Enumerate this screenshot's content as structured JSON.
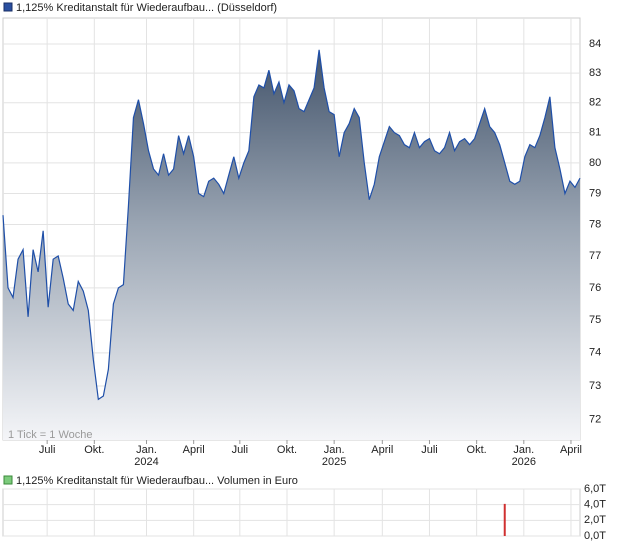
{
  "chart_data": [
    {
      "type": "area",
      "title": "1,125% Kreditanstalt für Wiederaufbau... (Düsseldorf)",
      "color": "#1f4fa8",
      "log_scale": true,
      "grid": true,
      "annotation": "1 Tick = 1 Woche",
      "values": [
        78.3,
        76.0,
        75.7,
        76.9,
        77.2,
        75.1,
        77.2,
        76.5,
        77.8,
        75.4,
        76.9,
        77.0,
        76.3,
        75.5,
        75.3,
        76.2,
        75.9,
        75.3,
        73.8,
        72.6,
        72.7,
        73.5,
        75.5,
        76.0,
        76.1,
        78.6,
        81.5,
        82.1,
        81.3,
        80.4,
        79.8,
        79.6,
        80.3,
        79.6,
        79.8,
        80.9,
        80.3,
        80.9,
        80.2,
        79.0,
        78.9,
        79.4,
        79.5,
        79.3,
        79.0,
        79.6,
        80.2,
        79.5,
        80.0,
        80.4,
        82.2,
        82.6,
        82.5,
        83.1,
        82.3,
        82.7,
        82.0,
        82.6,
        82.4,
        81.8,
        81.7,
        82.1,
        82.5,
        83.8,
        82.5,
        81.7,
        81.6,
        80.2,
        81.0,
        81.3,
        81.8,
        81.5,
        80.0,
        78.8,
        79.3,
        80.2,
        80.7,
        81.2,
        81.0,
        80.9,
        80.6,
        80.5,
        81.0,
        80.5,
        80.7,
        80.8,
        80.4,
        80.3,
        80.5,
        81.0,
        80.4,
        80.7,
        80.8,
        80.6,
        80.8,
        81.3,
        81.8,
        81.2,
        81.0,
        80.6,
        80.0,
        79.4,
        79.3,
        79.4,
        80.2,
        80.6,
        80.5,
        80.9,
        81.5,
        82.2,
        80.5,
        79.8,
        79.0,
        79.4,
        79.2,
        79.5
      ],
      "xticks": [
        {
          "value": 8.8,
          "label": "Juli"
        },
        {
          "value": 18.2,
          "label": "Okt."
        },
        {
          "value": 28.6,
          "label": "Jan.",
          "year": "2024"
        },
        {
          "value": 38,
          "label": "April"
        },
        {
          "value": 47.2,
          "label": "Juli"
        },
        {
          "value": 56.6,
          "label": "Okt."
        },
        {
          "value": 66,
          "label": "Jan.",
          "year": "2025"
        },
        {
          "value": 75.6,
          "label": "April"
        },
        {
          "value": 85,
          "label": "Juli"
        },
        {
          "value": 94.4,
          "label": "Okt."
        },
        {
          "value": 103.8,
          "label": "Jan.",
          "year": "2026"
        },
        {
          "value": 113.2,
          "label": "April"
        }
      ],
      "ylim": [
        71.4,
        84.9
      ],
      "yticks": [
        72,
        73,
        74,
        75,
        76,
        77,
        78,
        79,
        80,
        81,
        82,
        83,
        84
      ]
    },
    {
      "type": "bar",
      "title": "1,125% Kreditanstalt für Wiederaufbau... Volumen in Euro",
      "color": "#d03030",
      "grid": true,
      "x": [
        100
      ],
      "values": [
        4.1
      ],
      "ylim": [
        0,
        6
      ],
      "yticks": [
        {
          "value": 0,
          "label": "0,0T"
        },
        {
          "value": 2,
          "label": "2,0T"
        },
        {
          "value": 4,
          "label": "4,0T"
        },
        {
          "value": 6,
          "label": "6,0T"
        }
      ]
    }
  ]
}
